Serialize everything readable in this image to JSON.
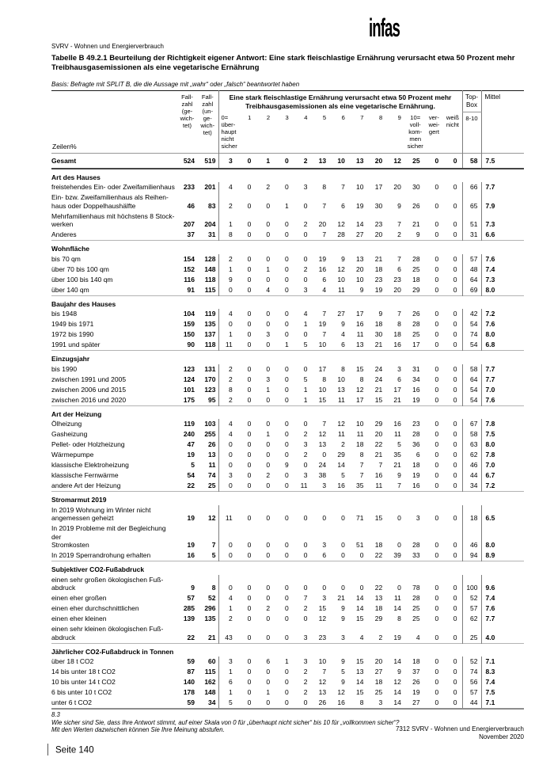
{
  "page": {
    "logo_text": "infas",
    "project_line": "SVRV - Wohnen und Energierverbrauch",
    "table_title": "Tabelle B 49.2.1 Beurteilung der Richtigkeit eigener Antwort: Eine stark fleischlastige Ernährung verursacht etwa 50 Prozent mehr Treibhausgasemissionen als eine vegetarische Ernährung",
    "basis_note": "Basis: Befragte mit SPLIT B, die die Aussage mit „wahr“ oder „falsch“ beantwortet haben",
    "footnote_number": "8.3",
    "footnote_question": "Wie sicher sind Sie, dass Ihre Antwort stimmt, auf einer Skala von 0 für „überhaupt nicht sicher“ bis 10 für „vollkommen sicher“?",
    "footnote_note": "Mit den Werten dazwischen können Sie Ihre Meinung abstufen.",
    "footer_source": "7312 SVRV - Wohnen und Energierverbrauch",
    "footer_date": "November 2020",
    "page_number_label": "Seite 140"
  },
  "table": {
    "row_label_header": "Zeilen%",
    "fallzahl_gewichtet_header": "Fall-\nzahl\n(ge-\nwich-\ntet)",
    "fallzahl_ungewichtet_header": "Fall-\nzahl\n(un-\nge-\nwich-\ntet)",
    "scale_question_header": "Eine stark fleischlastige Ernährung verursacht etwa 50 Prozent mehr\nTreibhausgasemissionen als eine vegetarische Ernährung.",
    "scale_headers": [
      "0=\nüber-\nhaupt\nnicht\nsicher",
      "1",
      "2",
      "3",
      "4",
      "5",
      "6",
      "7",
      "8",
      "9",
      "10=\nvoll-\nkom-\nmen\nsicher",
      "ver-\nwei-\ngert",
      "weiß\nnicht"
    ],
    "topbox_header": "Top-\nBox",
    "topbox_range": "8-10",
    "mittel_header": "Mittel",
    "sections": [
      {
        "gesamt": true,
        "rows": [
          {
            "label": "Gesamt",
            "fz_g": "524",
            "fz_u": "519",
            "values": [
              "3",
              "0",
              "1",
              "0",
              "2",
              "13",
              "10",
              "13",
              "20",
              "12",
              "25",
              "0",
              "0"
            ],
            "top_box": "58",
            "mittel": "7.5"
          }
        ]
      },
      {
        "title": "Art des Hauses",
        "rows": [
          {
            "label": "freistehendes Ein- oder Zweifamilienhaus",
            "fz_g": "233",
            "fz_u": "201",
            "values": [
              "4",
              "0",
              "2",
              "0",
              "3",
              "8",
              "7",
              "10",
              "17",
              "20",
              "30",
              "0",
              "0"
            ],
            "top_box": "66",
            "mittel": "7.7"
          },
          {
            "label": "Ein- bzw. Zweifamilienhaus als Reihen-\nhaus oder Doppelhaushälfte",
            "fz_g": "46",
            "fz_u": "83",
            "values": [
              "2",
              "0",
              "0",
              "1",
              "0",
              "7",
              "6",
              "19",
              "30",
              "9",
              "26",
              "0",
              "0"
            ],
            "top_box": "65",
            "mittel": "7.9"
          },
          {
            "label": "Mehrfamilienhaus mit höchstens 8 Stock-\nwerken",
            "fz_g": "207",
            "fz_u": "204",
            "values": [
              "1",
              "0",
              "0",
              "0",
              "2",
              "20",
              "12",
              "14",
              "23",
              "7",
              "21",
              "0",
              "0"
            ],
            "top_box": "51",
            "mittel": "7.3"
          },
          {
            "label": "Anderes",
            "fz_g": "37",
            "fz_u": "31",
            "values": [
              "8",
              "0",
              "0",
              "0",
              "0",
              "7",
              "28",
              "27",
              "20",
              "2",
              "9",
              "0",
              "0"
            ],
            "top_box": "31",
            "mittel": "6.6"
          }
        ]
      },
      {
        "title": "Wohnfläche",
        "rows": [
          {
            "label": "bis 70 qm",
            "fz_g": "154",
            "fz_u": "128",
            "values": [
              "2",
              "0",
              "0",
              "0",
              "0",
              "19",
              "9",
              "13",
              "21",
              "7",
              "28",
              "0",
              "0"
            ],
            "top_box": "57",
            "mittel": "7.6"
          },
          {
            "label": "über 70 bis 100 qm",
            "fz_g": "152",
            "fz_u": "148",
            "values": [
              "1",
              "0",
              "1",
              "0",
              "2",
              "16",
              "12",
              "20",
              "18",
              "6",
              "25",
              "0",
              "0"
            ],
            "top_box": "48",
            "mittel": "7.4"
          },
          {
            "label": "über 100 bis 140 qm",
            "fz_g": "116",
            "fz_u": "118",
            "values": [
              "9",
              "0",
              "0",
              "0",
              "0",
              "6",
              "10",
              "10",
              "23",
              "23",
              "18",
              "0",
              "0"
            ],
            "top_box": "64",
            "mittel": "7.3"
          },
          {
            "label": "über 140 qm",
            "fz_g": "91",
            "fz_u": "115",
            "values": [
              "0",
              "0",
              "4",
              "0",
              "3",
              "4",
              "11",
              "9",
              "19",
              "20",
              "29",
              "0",
              "0"
            ],
            "top_box": "69",
            "mittel": "8.0"
          }
        ]
      },
      {
        "title": "Baujahr des Hauses",
        "rows": [
          {
            "label": "bis 1948",
            "fz_g": "104",
            "fz_u": "119",
            "values": [
              "4",
              "0",
              "0",
              "0",
              "4",
              "7",
              "27",
              "17",
              "9",
              "7",
              "26",
              "0",
              "0"
            ],
            "top_box": "42",
            "mittel": "7.2"
          },
          {
            "label": "1949 bis 1971",
            "fz_g": "159",
            "fz_u": "135",
            "values": [
              "0",
              "0",
              "0",
              "0",
              "1",
              "19",
              "9",
              "16",
              "18",
              "8",
              "28",
              "0",
              "0"
            ],
            "top_box": "54",
            "mittel": "7.6"
          },
          {
            "label": "1972 bis 1990",
            "fz_g": "150",
            "fz_u": "137",
            "values": [
              "1",
              "0",
              "3",
              "0",
              "0",
              "7",
              "4",
              "11",
              "30",
              "18",
              "25",
              "0",
              "0"
            ],
            "top_box": "74",
            "mittel": "8.0"
          },
          {
            "label": "1991 und später",
            "fz_g": "90",
            "fz_u": "118",
            "values": [
              "11",
              "0",
              "0",
              "1",
              "5",
              "10",
              "6",
              "13",
              "21",
              "16",
              "17",
              "0",
              "0"
            ],
            "top_box": "54",
            "mittel": "6.8"
          }
        ]
      },
      {
        "title": "Einzugsjahr",
        "rows": [
          {
            "label": "bis 1990",
            "fz_g": "123",
            "fz_u": "131",
            "values": [
              "2",
              "0",
              "0",
              "0",
              "0",
              "17",
              "8",
              "15",
              "24",
              "3",
              "31",
              "0",
              "0"
            ],
            "top_box": "58",
            "mittel": "7.7"
          },
          {
            "label": "zwischen 1991 und 2005",
            "fz_g": "124",
            "fz_u": "170",
            "values": [
              "2",
              "0",
              "3",
              "0",
              "5",
              "8",
              "10",
              "8",
              "24",
              "6",
              "34",
              "0",
              "0"
            ],
            "top_box": "64",
            "mittel": "7.7"
          },
          {
            "label": "zwischen 2006 und 2015",
            "fz_g": "101",
            "fz_u": "123",
            "values": [
              "8",
              "0",
              "1",
              "0",
              "1",
              "10",
              "13",
              "12",
              "21",
              "17",
              "16",
              "0",
              "0"
            ],
            "top_box": "54",
            "mittel": "7.0"
          },
          {
            "label": "zwischen 2016 und 2020",
            "fz_g": "175",
            "fz_u": "95",
            "values": [
              "2",
              "0",
              "0",
              "0",
              "1",
              "15",
              "11",
              "17",
              "15",
              "21",
              "19",
              "0",
              "0"
            ],
            "top_box": "54",
            "mittel": "7.6"
          }
        ]
      },
      {
        "title": "Art der Heizung",
        "rows": [
          {
            "label": "Ölheizung",
            "fz_g": "119",
            "fz_u": "103",
            "values": [
              "4",
              "0",
              "0",
              "0",
              "0",
              "7",
              "12",
              "10",
              "29",
              "16",
              "23",
              "0",
              "0"
            ],
            "top_box": "67",
            "mittel": "7.8"
          },
          {
            "label": "Gasheizung",
            "fz_g": "240",
            "fz_u": "255",
            "values": [
              "4",
              "0",
              "1",
              "0",
              "2",
              "12",
              "11",
              "11",
              "20",
              "11",
              "28",
              "0",
              "0"
            ],
            "top_box": "58",
            "mittel": "7.5"
          },
          {
            "label": "Pellet- oder Holzheizung",
            "fz_g": "47",
            "fz_u": "26",
            "values": [
              "0",
              "0",
              "0",
              "0",
              "3",
              "13",
              "2",
              "18",
              "22",
              "5",
              "36",
              "0",
              "0"
            ],
            "top_box": "63",
            "mittel": "8.0"
          },
          {
            "label": "Wärmepumpe",
            "fz_g": "19",
            "fz_u": "13",
            "values": [
              "0",
              "0",
              "0",
              "0",
              "2",
              "0",
              "29",
              "8",
              "21",
              "35",
              "6",
              "0",
              "0"
            ],
            "top_box": "62",
            "mittel": "7.8"
          },
          {
            "label": "klassische Elektroheizung",
            "fz_g": "5",
            "fz_u": "11",
            "values": [
              "0",
              "0",
              "0",
              "9",
              "0",
              "24",
              "14",
              "7",
              "7",
              "21",
              "18",
              "0",
              "0"
            ],
            "top_box": "46",
            "mittel": "7.0"
          },
          {
            "label": "klassische Fernwärme",
            "fz_g": "54",
            "fz_u": "74",
            "values": [
              "3",
              "0",
              "2",
              "0",
              "3",
              "38",
              "5",
              "7",
              "16",
              "9",
              "19",
              "0",
              "0"
            ],
            "top_box": "44",
            "mittel": "6.7"
          },
          {
            "label": "andere Art der Heizung",
            "fz_g": "22",
            "fz_u": "25",
            "values": [
              "0",
              "0",
              "0",
              "0",
              "11",
              "3",
              "16",
              "35",
              "11",
              "7",
              "16",
              "0",
              "0"
            ],
            "top_box": "34",
            "mittel": "7.2"
          }
        ]
      },
      {
        "title": "Stromarmut 2019",
        "rows": [
          {
            "label": "In 2019 Wohnung im Winter nicht\nangemessen geheizt",
            "fz_g": "19",
            "fz_u": "12",
            "values": [
              "11",
              "0",
              "0",
              "0",
              "0",
              "0",
              "0",
              "71",
              "15",
              "0",
              "3",
              "0",
              "0"
            ],
            "top_box": "18",
            "mittel": "6.5"
          },
          {
            "label": "In 2019 Probleme mit der Begleichung der\nStromkosten",
            "fz_g": "19",
            "fz_u": "7",
            "values": [
              "0",
              "0",
              "0",
              "0",
              "0",
              "3",
              "0",
              "51",
              "18",
              "0",
              "28",
              "0",
              "0"
            ],
            "top_box": "46",
            "mittel": "8.0"
          },
          {
            "label": "In 2019 Sperrandrohung erhalten",
            "fz_g": "16",
            "fz_u": "5",
            "values": [
              "0",
              "0",
              "0",
              "0",
              "0",
              "6",
              "0",
              "0",
              "22",
              "39",
              "33",
              "0",
              "0"
            ],
            "top_box": "94",
            "mittel": "8.9"
          }
        ]
      },
      {
        "title": "Subjektiver CO2-Fußabdruck",
        "rows": [
          {
            "label": "einen sehr großen ökologischen Fuß-\nabdruck",
            "fz_g": "9",
            "fz_u": "8",
            "values": [
              "0",
              "0",
              "0",
              "0",
              "0",
              "0",
              "0",
              "0",
              "22",
              "0",
              "78",
              "0",
              "0"
            ],
            "top_box": "100",
            "mittel": "9.6"
          },
          {
            "label": "einen eher großen",
            "fz_g": "57",
            "fz_u": "52",
            "values": [
              "4",
              "0",
              "0",
              "0",
              "7",
              "3",
              "21",
              "14",
              "13",
              "11",
              "28",
              "0",
              "0"
            ],
            "top_box": "52",
            "mittel": "7.4"
          },
          {
            "label": "einen eher durchschnittlichen",
            "fz_g": "285",
            "fz_u": "296",
            "values": [
              "1",
              "0",
              "2",
              "0",
              "2",
              "15",
              "9",
              "14",
              "18",
              "14",
              "25",
              "0",
              "0"
            ],
            "top_box": "57",
            "mittel": "7.6"
          },
          {
            "label": "einen eher kleinen",
            "fz_g": "139",
            "fz_u": "135",
            "values": [
              "2",
              "0",
              "0",
              "0",
              "0",
              "12",
              "9",
              "15",
              "29",
              "8",
              "25",
              "0",
              "0"
            ],
            "top_box": "62",
            "mittel": "7.7"
          },
          {
            "label": "einen sehr kleinen ökologischen Fuß-\nabdruck",
            "fz_g": "22",
            "fz_u": "21",
            "values": [
              "43",
              "0",
              "0",
              "0",
              "3",
              "23",
              "3",
              "4",
              "2",
              "19",
              "4",
              "0",
              "0"
            ],
            "top_box": "25",
            "mittel": "4.0"
          }
        ]
      },
      {
        "title": "Jährlicher CO2-Fußabdruck in Tonnen",
        "rows": [
          {
            "label": "über 18 t CO2",
            "fz_g": "59",
            "fz_u": "60",
            "values": [
              "3",
              "0",
              "6",
              "1",
              "3",
              "10",
              "9",
              "15",
              "20",
              "14",
              "18",
              "0",
              "0"
            ],
            "top_box": "52",
            "mittel": "7.1"
          },
          {
            "label": "14 bis unter 18 t CO2",
            "fz_g": "87",
            "fz_u": "115",
            "values": [
              "1",
              "0",
              "0",
              "0",
              "2",
              "7",
              "5",
              "13",
              "27",
              "9",
              "37",
              "0",
              "0"
            ],
            "top_box": "74",
            "mittel": "8.3"
          },
          {
            "label": "10 bis unter 14 t CO2",
            "fz_g": "140",
            "fz_u": "162",
            "values": [
              "6",
              "0",
              "0",
              "0",
              "2",
              "12",
              "9",
              "14",
              "18",
              "12",
              "26",
              "0",
              "0"
            ],
            "top_box": "56",
            "mittel": "7.4"
          },
          {
            "label": "6 bis unter 10 t CO2",
            "fz_g": "178",
            "fz_u": "148",
            "values": [
              "1",
              "0",
              "1",
              "0",
              "2",
              "13",
              "12",
              "15",
              "25",
              "14",
              "19",
              "0",
              "0"
            ],
            "top_box": "57",
            "mittel": "7.5"
          },
          {
            "label": "unter 6 t CO2",
            "fz_g": "59",
            "fz_u": "34",
            "values": [
              "5",
              "0",
              "0",
              "0",
              "0",
              "26",
              "16",
              "8",
              "3",
              "14",
              "27",
              "0",
              "0"
            ],
            "top_box": "44",
            "mittel": "7.1"
          }
        ]
      }
    ]
  }
}
